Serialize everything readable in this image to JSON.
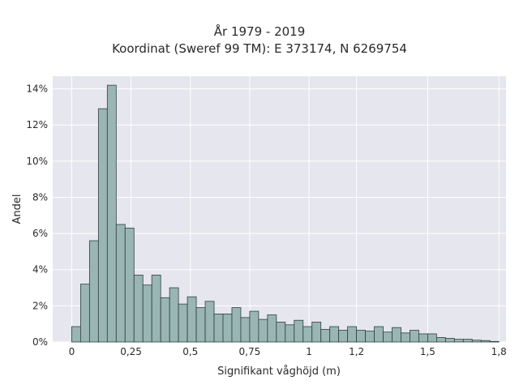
{
  "chart_data": {
    "type": "bar",
    "title": "År 1979 - 2019",
    "subtitle": "Koordinat (Sweref 99 TM): E 373174, N 6269754",
    "xlabel": "Signifikant våghöjd (m)",
    "ylabel": "Andel",
    "xlim": [
      -0.08,
      1.83
    ],
    "ylim": [
      0,
      0.147
    ],
    "bin_width": 0.0375,
    "x_ticks": [
      0,
      0.25,
      0.5,
      0.75,
      1,
      1.2,
      1.5,
      1.8
    ],
    "x_tick_labels": [
      "0",
      "0,25",
      "0,5",
      "0,75",
      "1",
      "1,2",
      "1,5",
      "1,8"
    ],
    "y_ticks": [
      0,
      0.02,
      0.04,
      0.06,
      0.08,
      0.1,
      0.12,
      0.14
    ],
    "y_tick_labels": [
      "0%",
      "2%",
      "4%",
      "6%",
      "8%",
      "10%",
      "12%",
      "14%"
    ],
    "grid": true,
    "bin_starts": [
      0,
      0.0375,
      0.075,
      0.1125,
      0.15,
      0.1875,
      0.225,
      0.2625,
      0.3,
      0.3375,
      0.375,
      0.4125,
      0.45,
      0.4875,
      0.525,
      0.5625,
      0.6,
      0.6375,
      0.675,
      0.7125,
      0.75,
      0.7875,
      0.825,
      0.8625,
      0.9,
      0.9375,
      0.975,
      1.0125,
      1.05,
      1.0875,
      1.125,
      1.1625,
      1.2,
      1.2375,
      1.275,
      1.3125,
      1.35,
      1.3875,
      1.425,
      1.4625,
      1.5,
      1.5375,
      1.575,
      1.6125,
      1.65,
      1.6875,
      1.725,
      1.7625
    ],
    "values": [
      0.0085,
      0.032,
      0.056,
      0.129,
      0.142,
      0.065,
      0.063,
      0.037,
      0.0315,
      0.037,
      0.0245,
      0.03,
      0.021,
      0.025,
      0.019,
      0.0225,
      0.0155,
      0.0155,
      0.019,
      0.0135,
      0.017,
      0.0125,
      0.015,
      0.011,
      0.0095,
      0.012,
      0.0085,
      0.011,
      0.007,
      0.0085,
      0.0065,
      0.0085,
      0.0065,
      0.006,
      0.0085,
      0.0055,
      0.008,
      0.005,
      0.0065,
      0.0045,
      0.0045,
      0.0025,
      0.002,
      0.0015,
      0.0015,
      0.001,
      0.0008,
      0.0003
    ],
    "colors": {
      "bar_fill": "#9ab6b4",
      "bar_stroke": "#2f3f3e",
      "plot_bg": "#e6e6ee",
      "grid": "#ffffff"
    }
  }
}
